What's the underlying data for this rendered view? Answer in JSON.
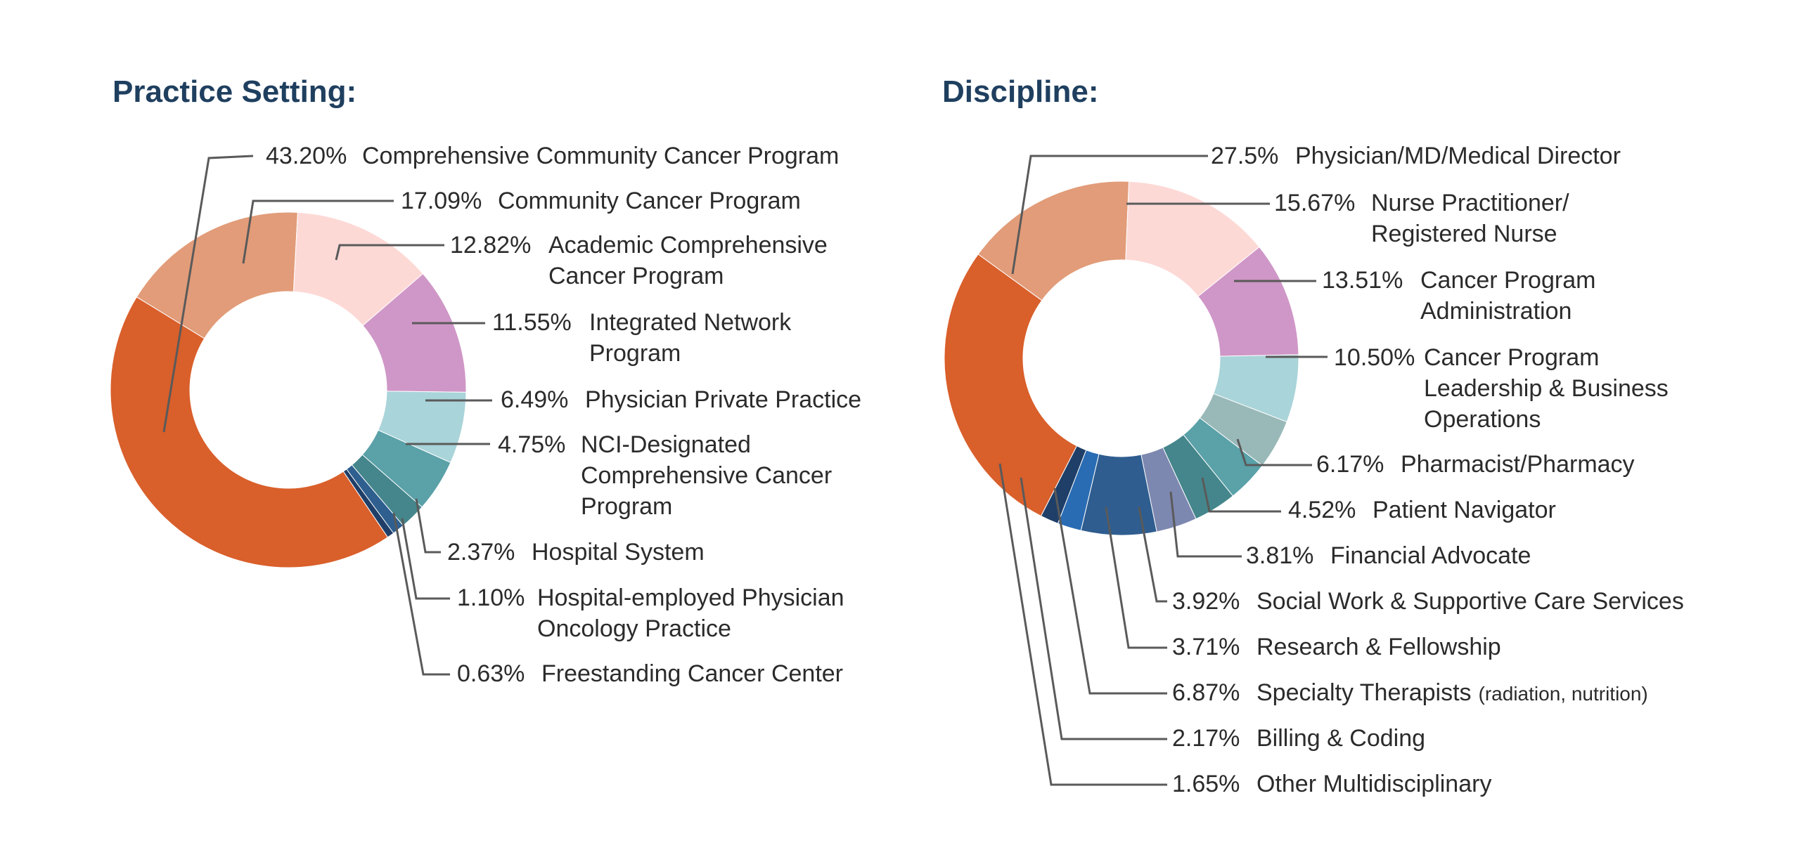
{
  "chart_data": [
    {
      "type": "donut",
      "title": "Practice Setting:",
      "colors_hint": "orange-to-blue palette",
      "slices": [
        {
          "pct_text": "43.20%",
          "value": 43.2,
          "label": [
            "Comprehensive Community Cancer Program"
          ],
          "color": "#d95f2b"
        },
        {
          "pct_text": "17.09%",
          "value": 17.09,
          "label": [
            "Community Cancer Program"
          ],
          "color": "#e29c79"
        },
        {
          "pct_text": "12.82%",
          "value": 12.82,
          "label": [
            "Academic Comprehensive",
            "Cancer Program"
          ],
          "color": "#fdd9d6"
        },
        {
          "pct_text": "11.55%",
          "value": 11.55,
          "label": [
            "Integrated Network",
            "Program"
          ],
          "color": "#cf97c7"
        },
        {
          "pct_text": "6.49%",
          "value": 6.49,
          "label": [
            "Physician Private Practice"
          ],
          "color": "#a9d4d9"
        },
        {
          "pct_text": "4.75%",
          "value": 4.75,
          "label": [
            "NCI-Designated",
            "Comprehensive Cancer",
            "Program"
          ],
          "color": "#5aa1a8"
        },
        {
          "pct_text": "2.37%",
          "value": 2.37,
          "label": [
            "Hospital System"
          ],
          "color": "#44868c"
        },
        {
          "pct_text": "1.10%",
          "value": 1.1,
          "label": [
            "Hospital-employed Physician",
            "Oncology Practice"
          ],
          "color": "#2e5f8f"
        },
        {
          "pct_text": "0.63%",
          "value": 0.63,
          "label": [
            "Freestanding Cancer Center"
          ],
          "color": "#1f3f68"
        }
      ]
    },
    {
      "type": "donut",
      "title": "Discipline:",
      "slices": [
        {
          "pct_text": "27.5%",
          "value": 27.5,
          "label": [
            "Physician/MD/Medical Director"
          ],
          "color": "#d95f2b"
        },
        {
          "pct_text": "15.67%",
          "value": 15.67,
          "label": [
            "Nurse Practitioner/",
            "Registered Nurse"
          ],
          "color": "#e29c79"
        },
        {
          "pct_text": "13.51%",
          "value": 13.51,
          "label": [
            "Cancer Program",
            "Administration"
          ],
          "color": "#fdd9d6"
        },
        {
          "pct_text": "10.50%",
          "value": 10.5,
          "label": [
            "Cancer Program",
            "Leadership & Business",
            "Operations"
          ],
          "color": "#cf97c7"
        },
        {
          "pct_text": "6.17%",
          "value": 6.17,
          "label": [
            "Pharmacist/Pharmacy"
          ],
          "color": "#a9d4d9"
        },
        {
          "pct_text": "4.52%",
          "value": 4.52,
          "label": [
            "Patient Navigator"
          ],
          "color": "#99b9b8"
        },
        {
          "pct_text": "3.81%",
          "value": 3.81,
          "label": [
            "Financial Advocate"
          ],
          "color": "#5aa1a8"
        },
        {
          "pct_text": "3.92%",
          "value": 3.92,
          "label": [
            "Social Work & Supportive Care Services"
          ],
          "color": "#44868c"
        },
        {
          "pct_text": "3.71%",
          "value": 3.71,
          "label": [
            "Research & Fellowship"
          ],
          "color": "#7d88b0"
        },
        {
          "pct_text": "6.87%",
          "value": 6.87,
          "label": [
            "Specialty Therapists"
          ],
          "label_suffix": "(radiation, nutrition)",
          "color": "#2f5d8f"
        },
        {
          "pct_text": "2.17%",
          "value": 2.17,
          "label": [
            "Billing & Coding"
          ],
          "color": "#2a6cb3"
        },
        {
          "pct_text": "1.65%",
          "value": 1.65,
          "label": [
            "Other Multidisciplinary"
          ],
          "color": "#1f3f68"
        }
      ]
    }
  ]
}
